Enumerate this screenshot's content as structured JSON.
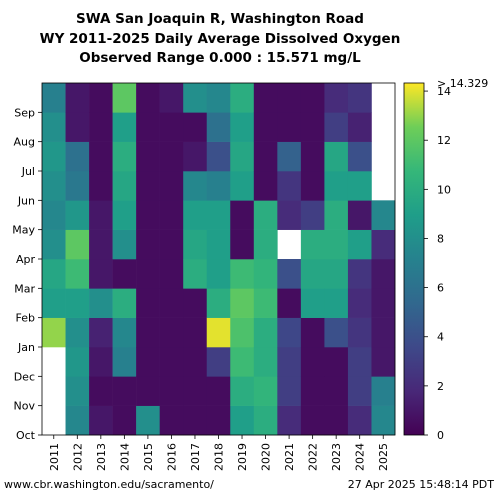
{
  "titles": {
    "line1": "SWA San Joaquin R, Washington Road",
    "line2": "WY 2011-2025 Daily Average Dissolved Oxygen",
    "line3": "Observed Range 0.000 : 15.571 mg/L"
  },
  "footer": {
    "source": "www.cbr.washington.edu/sacramento/",
    "timestamp": "27 Apr 2025 15:48:14 PDT"
  },
  "chart_data": {
    "type": "heatmap",
    "x_categories": [
      "2011",
      "2012",
      "2013",
      "2014",
      "2015",
      "2016",
      "2017",
      "2018",
      "2019",
      "2020",
      "2021",
      "2022",
      "2023",
      "2024",
      "2025"
    ],
    "y_months": [
      "Oct",
      "Nov",
      "Dec",
      "Jan",
      "Feb",
      "Mar",
      "Apr",
      "May",
      "Jun",
      "Jul",
      "Aug",
      "Sep"
    ],
    "value_unit": "mg/L",
    "color_scale": {
      "min": 0,
      "max": 14.329,
      "colormap": "viridis",
      "over_label": "> 14.329"
    },
    "colorbar_ticks": [
      "0",
      "2",
      "4",
      "6",
      "8",
      "10",
      "12",
      "14"
    ],
    "grid": false,
    "monthly_approx_values": [
      [
        null,
        null,
        null,
        13.0,
        9.0,
        9.5,
        8.0,
        7.5,
        8.0,
        8.5,
        8.0,
        7.0
      ],
      [
        7.5,
        8.0,
        8.5,
        8.0,
        9.0,
        11.0,
        12.0,
        8.5,
        6.5,
        6.0,
        1.0,
        1.0
      ],
      [
        1.0,
        0.5,
        1.0,
        1.5,
        8.0,
        1.0,
        1.0,
        1.0,
        0.5,
        0.5,
        0.5,
        0.5
      ],
      [
        0.5,
        0.5,
        7.0,
        7.5,
        10.0,
        0.5,
        8.0,
        9.0,
        9.5,
        10.0,
        9.0,
        12.0
      ],
      [
        8.0,
        0.5,
        0.5,
        0.5,
        0.5,
        0.5,
        0.5,
        0.5,
        0.5,
        0.5,
        0.5,
        0.5
      ],
      [
        0.5,
        0.5,
        0.5,
        0.5,
        0.5,
        0.5,
        0.5,
        0.5,
        0.5,
        0.5,
        0.5,
        1.0
      ],
      [
        0.5,
        0.5,
        0.5,
        0.5,
        0.5,
        10.0,
        9.5,
        9.0,
        7.5,
        1.0,
        0.5,
        8.0
      ],
      [
        0.5,
        0.5,
        3.0,
        14.0,
        10.0,
        9.0,
        9.0,
        9.0,
        7.0,
        4.0,
        6.0,
        7.5
      ],
      [
        9.0,
        10.0,
        11.0,
        11.5,
        12.0,
        11.0,
        0.5,
        0.5,
        9.0,
        9.5,
        9.0,
        10.0
      ],
      [
        10.0,
        10.5,
        10.0,
        10.0,
        11.0,
        10.5,
        10.0,
        10.0,
        0.5,
        0.5,
        0.5,
        0.5
      ],
      [
        2.0,
        3.0,
        3.0,
        3.5,
        0.5,
        4.0,
        null,
        2.0,
        2.5,
        5.0,
        0.5,
        0.5
      ],
      [
        0.5,
        0.5,
        0.5,
        0.5,
        9.0,
        9.5,
        10.0,
        3.0,
        0.5,
        0.5,
        0.5,
        0.5
      ],
      [
        0.5,
        0.5,
        0.5,
        4.0,
        9.0,
        9.5,
        10.0,
        10.0,
        9.0,
        9.5,
        3.0,
        2.0
      ],
      [
        2.0,
        3.0,
        3.0,
        2.5,
        2.0,
        2.5,
        9.0,
        1.0,
        9.0,
        4.0,
        1.5,
        2.5
      ],
      [
        7.5,
        7.0,
        1.0,
        1.0,
        1.0,
        1.0,
        2.0,
        7.5,
        null,
        null,
        null,
        null
      ]
    ]
  }
}
